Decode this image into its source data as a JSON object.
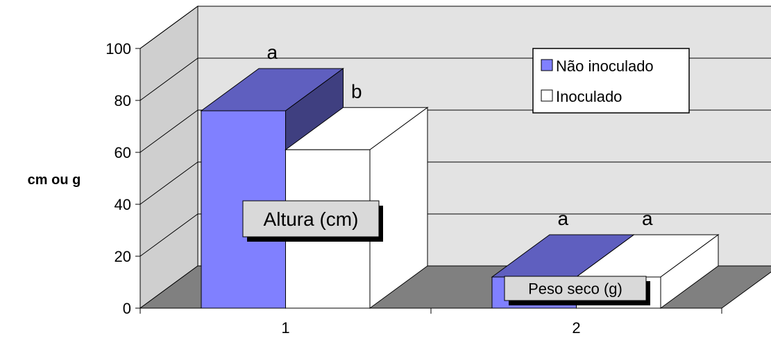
{
  "chart_data": {
    "type": "bar",
    "three_d": true,
    "categories": [
      "1",
      "2"
    ],
    "series": [
      {
        "name": "Não inoculado",
        "values": [
          76,
          12
        ],
        "letters": [
          "a",
          "a"
        ]
      },
      {
        "name": "Inoculado",
        "values": [
          61,
          12
        ],
        "letters": [
          "b",
          "a"
        ]
      }
    ],
    "group_labels": [
      "Altura (cm)",
      "Peso seco (g)"
    ],
    "ylabel": "cm ou g",
    "xlabel": "",
    "ylim": [
      0,
      100
    ],
    "yticks": [
      0,
      20,
      40,
      60,
      80,
      100
    ],
    "grid": true,
    "legend_position": "top-right"
  },
  "colors": {
    "series_front": [
      "#8080ff",
      "#ffffff"
    ],
    "series_top": [
      "#5f5fbf",
      "#ffffff"
    ],
    "series_side": [
      "#3f3f80",
      "#ffffff"
    ],
    "back_wall": "#e3e3e3",
    "side_wall": "#cfcfcf",
    "floor": "#808080",
    "callout_fill": "#d9d9d9",
    "callout_shadow": "#000000"
  }
}
